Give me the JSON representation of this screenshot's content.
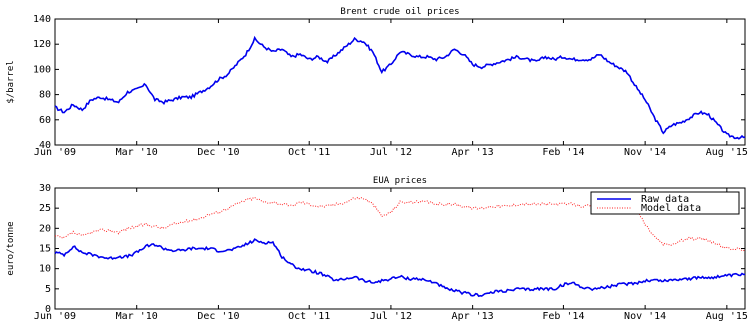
{
  "chart_data": [
    {
      "type": "line",
      "title": "Brent crude oil prices",
      "xlabel": "",
      "ylabel": "$/barrel",
      "ylim": [
        40,
        140
      ],
      "yticks": [
        40,
        60,
        80,
        100,
        120,
        140
      ],
      "x_tick_labels": [
        "Jun '09",
        "Mar '10",
        "Dec '10",
        "Oct '11",
        "Jul '12",
        "Apr '13",
        "Feb '14",
        "Nov '14",
        "Aug '15"
      ],
      "x_tick_dates": [
        "2009-06",
        "2010-03",
        "2010-12",
        "2011-10",
        "2012-07",
        "2013-04",
        "2014-02",
        "2014-11",
        "2015-08"
      ],
      "xlim": [
        "2009-06",
        "2015-10"
      ],
      "grid": false,
      "series": [
        {
          "color": "#0000ee",
          "style": "solid",
          "x": [
            "2009-06",
            "2009-07",
            "2009-08",
            "2009-09",
            "2009-10",
            "2009-11",
            "2009-12",
            "2010-01",
            "2010-02",
            "2010-03",
            "2010-04",
            "2010-05",
            "2010-06",
            "2010-07",
            "2010-08",
            "2010-09",
            "2010-10",
            "2010-11",
            "2010-12",
            "2011-01",
            "2011-02",
            "2011-03",
            "2011-04",
            "2011-05",
            "2011-06",
            "2011-07",
            "2011-08",
            "2011-09",
            "2011-10",
            "2011-11",
            "2011-12",
            "2012-01",
            "2012-02",
            "2012-03",
            "2012-04",
            "2012-05",
            "2012-06",
            "2012-07",
            "2012-08",
            "2012-09",
            "2012-10",
            "2012-11",
            "2012-12",
            "2013-01",
            "2013-02",
            "2013-03",
            "2013-04",
            "2013-05",
            "2013-06",
            "2013-07",
            "2013-08",
            "2013-09",
            "2013-10",
            "2013-11",
            "2013-12",
            "2014-01",
            "2014-02",
            "2014-03",
            "2014-04",
            "2014-05",
            "2014-06",
            "2014-07",
            "2014-08",
            "2014-09",
            "2014-10",
            "2014-11",
            "2014-12",
            "2015-01",
            "2015-02",
            "2015-03",
            "2015-04",
            "2015-05",
            "2015-06",
            "2015-07",
            "2015-08",
            "2015-09",
            "2015-10"
          ],
          "values": [
            70,
            66,
            72,
            68,
            76,
            78,
            76,
            74,
            82,
            84,
            88,
            76,
            74,
            76,
            78,
            78,
            82,
            86,
            92,
            96,
            104,
            112,
            124,
            118,
            114,
            116,
            110,
            112,
            108,
            110,
            106,
            112,
            118,
            124,
            122,
            114,
            98,
            104,
            114,
            112,
            110,
            110,
            108,
            110,
            116,
            112,
            104,
            102,
            104,
            106,
            108,
            110,
            108,
            106,
            110,
            108,
            110,
            108,
            108,
            108,
            112,
            106,
            102,
            98,
            86,
            76,
            62,
            50,
            56,
            58,
            62,
            66,
            64,
            56,
            48,
            46,
            46
          ]
        }
      ]
    },
    {
      "type": "line",
      "title": "EUA prices",
      "xlabel": "",
      "ylabel": "euro/tonne",
      "ylim": [
        0,
        30
      ],
      "yticks": [
        0,
        5,
        10,
        15,
        20,
        25,
        30
      ],
      "x_tick_labels": [
        "Jun '09",
        "Mar '10",
        "Dec '10",
        "Oct '11",
        "Jul '12",
        "Apr '13",
        "Feb '14",
        "Nov '14",
        "Aug '15"
      ],
      "x_tick_dates": [
        "2009-06",
        "2010-03",
        "2010-12",
        "2011-10",
        "2012-07",
        "2013-04",
        "2014-02",
        "2014-11",
        "2015-08"
      ],
      "xlim": [
        "2009-06",
        "2015-10"
      ],
      "grid": false,
      "legend": "top-right",
      "series": [
        {
          "name": "Raw data",
          "color": "#0000ee",
          "style": "solid",
          "x": [
            "2009-06",
            "2009-07",
            "2009-08",
            "2009-09",
            "2009-10",
            "2009-11",
            "2009-12",
            "2010-01",
            "2010-02",
            "2010-03",
            "2010-04",
            "2010-05",
            "2010-06",
            "2010-07",
            "2010-08",
            "2010-09",
            "2010-10",
            "2010-11",
            "2010-12",
            "2011-01",
            "2011-02",
            "2011-03",
            "2011-04",
            "2011-05",
            "2011-06",
            "2011-07",
            "2011-08",
            "2011-09",
            "2011-10",
            "2011-11",
            "2011-12",
            "2012-01",
            "2012-02",
            "2012-03",
            "2012-04",
            "2012-05",
            "2012-06",
            "2012-07",
            "2012-08",
            "2012-09",
            "2012-10",
            "2012-11",
            "2012-12",
            "2013-01",
            "2013-02",
            "2013-03",
            "2013-04",
            "2013-05",
            "2013-06",
            "2013-07",
            "2013-08",
            "2013-09",
            "2013-10",
            "2013-11",
            "2013-12",
            "2014-01",
            "2014-02",
            "2014-03",
            "2014-04",
            "2014-05",
            "2014-06",
            "2014-07",
            "2014-08",
            "2014-09",
            "2014-10",
            "2014-11",
            "2014-12",
            "2015-01",
            "2015-02",
            "2015-03",
            "2015-04",
            "2015-05",
            "2015-06",
            "2015-07",
            "2015-08",
            "2015-09",
            "2015-10"
          ],
          "values": [
            14,
            13.5,
            15.5,
            14,
            13.5,
            13,
            12.5,
            13,
            13,
            14,
            15.5,
            16,
            15,
            14.5,
            14.5,
            15,
            15,
            15,
            14.5,
            14.5,
            15,
            16,
            17,
            16.5,
            16.5,
            13,
            11,
            10,
            9.5,
            9,
            8,
            7,
            7.5,
            8,
            7,
            6.5,
            7,
            7.5,
            8,
            7.5,
            7.5,
            7,
            6.5,
            5,
            4.5,
            4,
            3.5,
            3.5,
            4,
            4.5,
            4.5,
            5,
            4.8,
            5,
            5,
            5,
            6,
            6.5,
            5.5,
            5,
            5.2,
            5.5,
            6,
            6.2,
            6.5,
            7,
            7.2,
            7,
            7.2,
            7.5,
            7.5,
            7.8,
            7.8,
            8,
            8.2,
            8.4,
            8.6
          ]
        },
        {
          "name": "Model data",
          "color": "#ff2020",
          "style": "dotted",
          "x": [
            "2009-06",
            "2009-07",
            "2009-08",
            "2009-09",
            "2009-10",
            "2009-11",
            "2009-12",
            "2010-01",
            "2010-02",
            "2010-03",
            "2010-04",
            "2010-05",
            "2010-06",
            "2010-07",
            "2010-08",
            "2010-09",
            "2010-10",
            "2010-11",
            "2010-12",
            "2011-01",
            "2011-02",
            "2011-03",
            "2011-04",
            "2011-05",
            "2011-06",
            "2011-07",
            "2011-08",
            "2011-09",
            "2011-10",
            "2011-11",
            "2011-12",
            "2012-01",
            "2012-02",
            "2012-03",
            "2012-04",
            "2012-05",
            "2012-06",
            "2012-07",
            "2012-08",
            "2012-09",
            "2012-10",
            "2012-11",
            "2012-12",
            "2013-01",
            "2013-02",
            "2013-03",
            "2013-04",
            "2013-05",
            "2013-06",
            "2013-07",
            "2013-08",
            "2013-09",
            "2013-10",
            "2013-11",
            "2013-12",
            "2014-01",
            "2014-02",
            "2014-03",
            "2014-04",
            "2014-05",
            "2014-06",
            "2014-07",
            "2014-08",
            "2014-09",
            "2014-10",
            "2014-11",
            "2014-12",
            "2015-01",
            "2015-02",
            "2015-03",
            "2015-04",
            "2015-05",
            "2015-06",
            "2015-07",
            "2015-08",
            "2015-09",
            "2015-10"
          ],
          "values": [
            18,
            17.5,
            19,
            18,
            19,
            19.5,
            19.5,
            19,
            20,
            20.5,
            21,
            20.5,
            20,
            21,
            21.5,
            22,
            22.5,
            23.5,
            24,
            25,
            26,
            27,
            27.5,
            26.5,
            26.5,
            26,
            25.5,
            26.5,
            26,
            25.5,
            25.5,
            26,
            26.5,
            27.5,
            27.5,
            26,
            23,
            24,
            26.5,
            26.5,
            26.5,
            26.5,
            26,
            26,
            26,
            25.5,
            25,
            25,
            25.5,
            25.5,
            25.5,
            26,
            26,
            26,
            26,
            26,
            26,
            26,
            25.5,
            25.5,
            26,
            26.5,
            26,
            26,
            25,
            21,
            18,
            16,
            16,
            17,
            17.5,
            17.5,
            17,
            16,
            15,
            15,
            14.5
          ]
        }
      ]
    }
  ]
}
